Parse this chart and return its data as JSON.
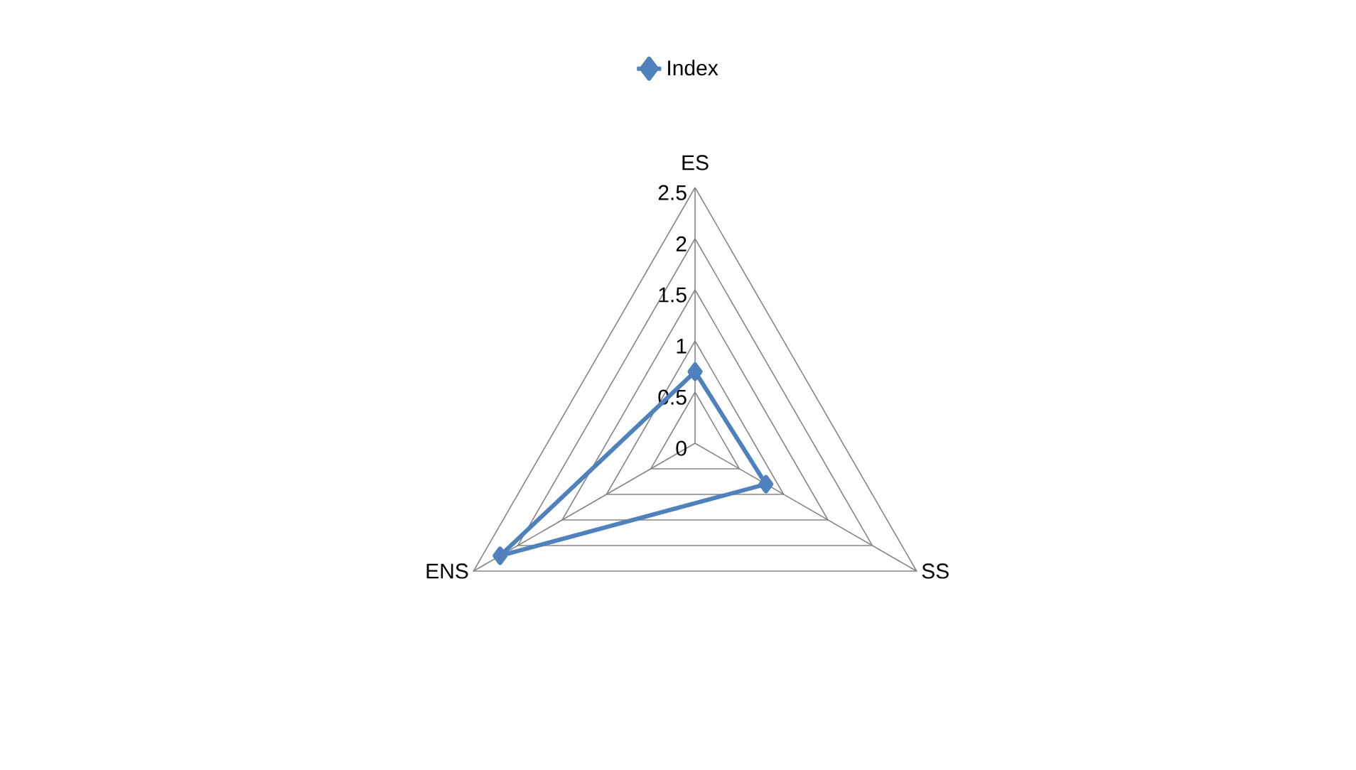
{
  "chart_data": {
    "type": "radar",
    "categories": [
      "ES",
      "SS",
      "ENS"
    ],
    "series": [
      {
        "name": "Index",
        "color": "#4f81bd",
        "values": [
          0.7,
          0.8,
          2.2
        ]
      }
    ],
    "ylim": [
      0,
      2.5
    ],
    "yticks": [
      0,
      0.5,
      1,
      1.5,
      2,
      2.5
    ],
    "legend": "top",
    "marker": "diamond",
    "grid": true
  }
}
